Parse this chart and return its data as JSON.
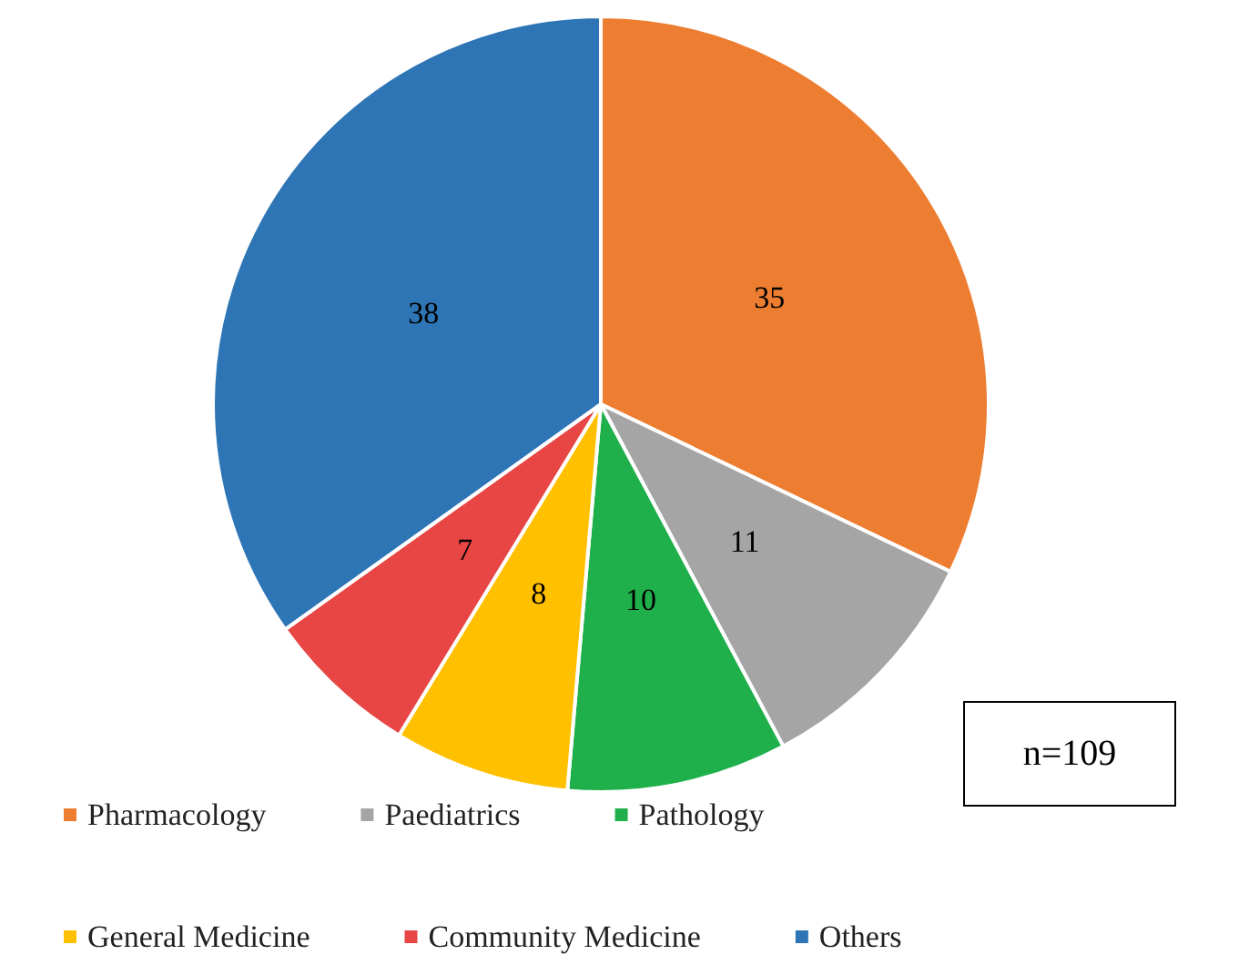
{
  "chart_data": {
    "type": "pie",
    "categories": [
      "Pharmacology",
      "Paediatrics",
      "Pathology",
      "General Medicine",
      "Community Medicine",
      "Others"
    ],
    "values": [
      35,
      11,
      10,
      8,
      7,
      38
    ],
    "colors": [
      "#ed7d31",
      "#a5a5a5",
      "#1fb04b",
      "#ffc000",
      "#e84545",
      "#2e75b6"
    ],
    "data_labels": true,
    "legend": "bottom",
    "annotations": [
      "n=109"
    ]
  }
}
